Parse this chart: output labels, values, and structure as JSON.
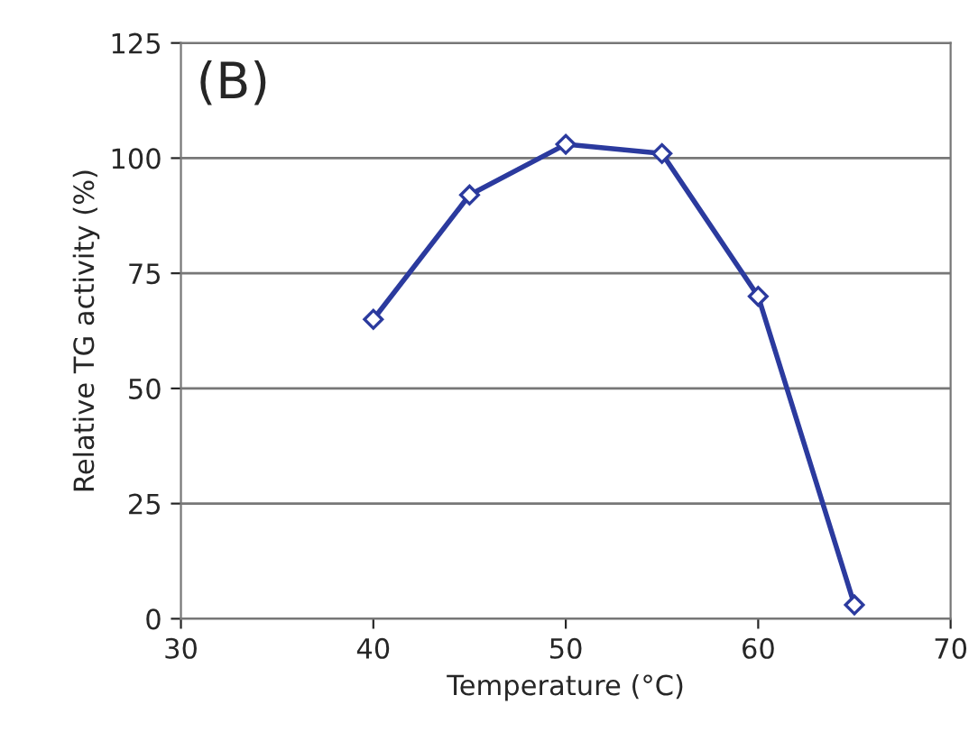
{
  "chart_data": {
    "type": "line",
    "xlabel": "Temperature (°C)",
    "ylabel": "Relative TG activity (%)",
    "annotations": [
      "(B)"
    ],
    "x": [
      40,
      45,
      50,
      55,
      60,
      65
    ],
    "series": [
      {
        "color": "#2b3a9e",
        "values": [
          65,
          92,
          103,
          101,
          70,
          3
        ]
      }
    ],
    "xlim": [
      30,
      70
    ],
    "xticks": [
      30,
      40,
      50,
      60,
      70
    ],
    "ylim": [
      0,
      125
    ],
    "yticks": [
      0,
      25,
      50,
      75,
      100,
      125
    ],
    "grid": "y",
    "marker": "diamond",
    "line_style": "solid",
    "legend": false
  }
}
